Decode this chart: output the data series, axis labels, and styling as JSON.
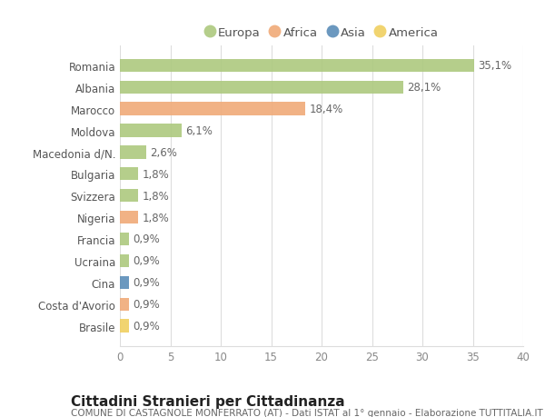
{
  "countries": [
    "Romania",
    "Albania",
    "Marocco",
    "Moldova",
    "Macedonia d/N.",
    "Bulgaria",
    "Svizzera",
    "Nigeria",
    "Francia",
    "Ucraina",
    "Cina",
    "Costa d'Avorio",
    "Brasile"
  ],
  "values": [
    35.1,
    28.1,
    18.4,
    6.1,
    2.6,
    1.8,
    1.8,
    1.8,
    0.9,
    0.9,
    0.9,
    0.9,
    0.9
  ],
  "labels": [
    "35,1%",
    "28,1%",
    "18,4%",
    "6,1%",
    "2,6%",
    "1,8%",
    "1,8%",
    "1,8%",
    "0,9%",
    "0,9%",
    "0,9%",
    "0,9%",
    "0,9%"
  ],
  "continents": [
    "Europa",
    "Europa",
    "Africa",
    "Europa",
    "Europa",
    "Europa",
    "Europa",
    "Africa",
    "Europa",
    "Europa",
    "Asia",
    "Africa",
    "America"
  ],
  "continent_colors": {
    "Europa": "#adc97f",
    "Africa": "#f0aa78",
    "Asia": "#5b8db8",
    "America": "#f0d060"
  },
  "legend_order": [
    "Europa",
    "Africa",
    "Asia",
    "America"
  ],
  "title": "Cittadini Stranieri per Cittadinanza",
  "subtitle": "COMUNE DI CASTAGNOLE MONFERRATO (AT) - Dati ISTAT al 1° gennaio - Elaborazione TUTTITALIA.IT",
  "xlim": [
    0,
    40
  ],
  "xticks": [
    0,
    5,
    10,
    15,
    20,
    25,
    30,
    35,
    40
  ],
  "background_color": "#ffffff",
  "grid_color": "#dddddd",
  "bar_height": 0.6,
  "title_fontsize": 11,
  "subtitle_fontsize": 7.5,
  "label_fontsize": 8.5,
  "tick_fontsize": 8.5,
  "legend_fontsize": 9.5
}
